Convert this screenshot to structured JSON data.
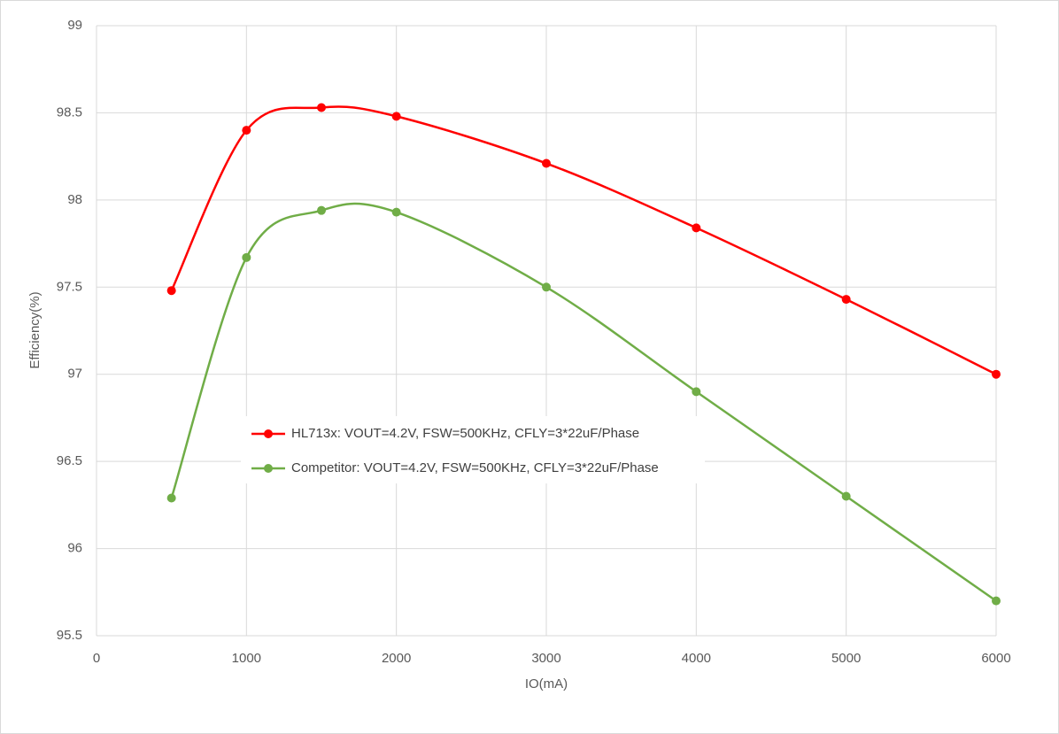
{
  "chart_data": {
    "type": "line",
    "x_label": "IO(mA)",
    "y_label": "Efficiency(%)",
    "x": [
      500,
      1000,
      1500,
      2000,
      3000,
      4000,
      5000,
      6000
    ],
    "series": [
      {
        "name": "HL713x: VOUT=4.2V, FSW=500KHz, CFLY=3*22uF/Phase",
        "color": "#ff0000",
        "values": [
          97.48,
          98.4,
          98.53,
          98.48,
          98.21,
          97.84,
          97.43,
          97.0
        ]
      },
      {
        "name": "Competitor: VOUT=4.2V, FSW=500KHz, CFLY=3*22uF/Phase",
        "color": "#70ad47",
        "values": [
          96.29,
          97.67,
          97.94,
          97.93,
          97.5,
          96.9,
          96.3,
          95.7
        ]
      }
    ],
    "xlim": [
      0,
      6000
    ],
    "xticks": [
      0,
      1000,
      2000,
      3000,
      4000,
      5000,
      6000
    ],
    "ylim": [
      95.5,
      99
    ],
    "yticks": [
      95.5,
      96,
      96.5,
      97,
      97.5,
      98,
      98.5,
      99
    ],
    "grid": true,
    "smooth": true
  }
}
